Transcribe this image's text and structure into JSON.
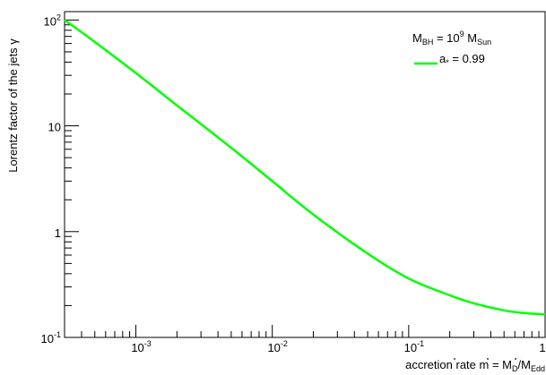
{
  "chart_data": {
    "type": "line",
    "x_scale": "log",
    "y_scale": "log",
    "xlim": [
      0.0003,
      1
    ],
    "ylim": [
      0.1,
      120
    ],
    "xlabel": {
      "base": "accretion rate ",
      "mdot": "m",
      "eq": " = ",
      "md": "M",
      "md_sub": "D",
      "slash": "/",
      "medd": "M",
      "medd_sub": "Edd"
    },
    "ylabel": "Lorentz factor of the jets γ",
    "x_ticks": [
      {
        "value": 0.001,
        "base": "10",
        "exp": "-3"
      },
      {
        "value": 0.01,
        "base": "10",
        "exp": "-2"
      },
      {
        "value": 0.1,
        "base": "10",
        "exp": "-1"
      },
      {
        "value": 1,
        "base": "1",
        "exp": ""
      }
    ],
    "y_ticks": [
      {
        "value": 0.1,
        "base": "10",
        "exp": "-1"
      },
      {
        "value": 1,
        "base": "1",
        "exp": ""
      },
      {
        "value": 10,
        "base": "10",
        "exp": ""
      },
      {
        "value": 100,
        "base": "10",
        "exp": "2"
      }
    ],
    "legend": {
      "header": {
        "m": "M",
        "m_sub": "BH",
        "eq": " = 10",
        "exp": "9",
        "msun": " M",
        "msun_sub": "Sun"
      },
      "entry": {
        "a": "a",
        "a_sub": "*",
        "rest": " = 0.99"
      },
      "placement": "top-right"
    },
    "series": [
      {
        "color": "#00ff00",
        "x": [
          0.0003,
          0.0005,
          0.001,
          0.002,
          0.005,
          0.01,
          0.02,
          0.05,
          0.1,
          0.2,
          0.3,
          0.5,
          0.7,
          1.0
        ],
        "y": [
          100,
          62,
          31.5,
          15.6,
          6.2,
          3.0,
          1.45,
          0.62,
          0.36,
          0.25,
          0.21,
          0.18,
          0.17,
          0.165
        ]
      }
    ],
    "grid": false
  }
}
